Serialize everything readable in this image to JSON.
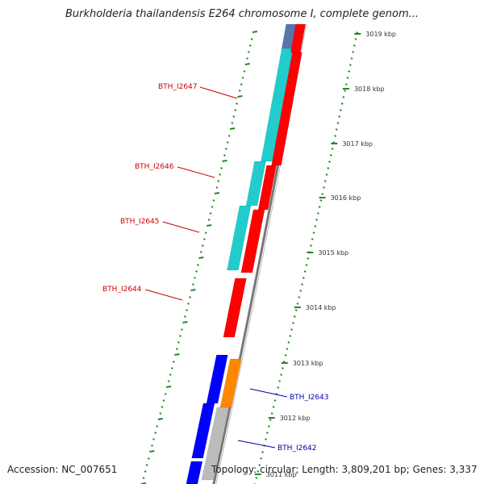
{
  "title": "Burkholderia thailandensis E264 chromosome I, complete genom...",
  "footer": {
    "accession": "Accession: NC_007651",
    "summary": "Topology: circular; Length: 3,809,201 bp; Genes: 3,337"
  },
  "colors": {
    "label_red": "#cc0000",
    "label_blue": "#0000aa",
    "backbone": "#777777",
    "tick_green": "#228822",
    "cyan": "#22cccc",
    "red": "#ff0000",
    "blue": "#0000ff",
    "orange": "#ff8800",
    "steelblue": "#5577aa",
    "grey": "#bbbbbb"
  },
  "scale_ticks": [
    {
      "label": "3019 kbp"
    },
    {
      "label": "3018 kbp"
    },
    {
      "label": "3017 kbp"
    },
    {
      "label": "3016 kbp"
    },
    {
      "label": "3015 kbp"
    },
    {
      "label": "3014 kbp"
    },
    {
      "label": "3013 kbp"
    },
    {
      "label": "3012 kbp"
    },
    {
      "label": "3011 kbp"
    }
  ],
  "gene_labels": [
    {
      "name": "BTH_I2647",
      "color": "red"
    },
    {
      "name": "BTH_I2646",
      "color": "red"
    },
    {
      "name": "BTH_I2645",
      "color": "red"
    },
    {
      "name": "BTH_I2644",
      "color": "red"
    },
    {
      "name": "BTH_I2643",
      "color": "blue"
    },
    {
      "name": "BTH_I2642",
      "color": "blue"
    }
  ]
}
